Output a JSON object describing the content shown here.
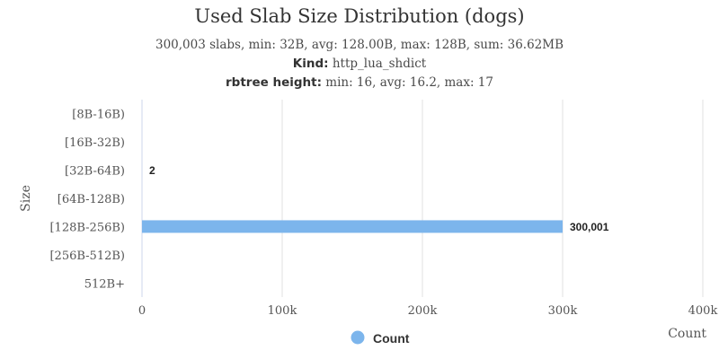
{
  "chart_data": {
    "type": "bar",
    "orientation": "horizontal",
    "title": "Used Slab Size Distribution (dogs)",
    "subtitle": "300,003 slabs, min: 32B, avg: 128.00B, max: 128B, sum: 36.62MB",
    "kind_label": "Kind:",
    "kind_value": "http_lua_shdict",
    "rbtree_label": "rbtree height:",
    "rbtree_value": "min: 16, avg: 16.2, max: 17",
    "categories": [
      "[8B-16B)",
      "[16B-32B)",
      "[32B-64B)",
      "[64B-128B)",
      "[128B-256B)",
      "[256B-512B)",
      "512B+"
    ],
    "series": [
      {
        "name": "Count",
        "color": "#7cb5ec",
        "values": [
          0,
          0,
          2,
          0,
          300001,
          0,
          0
        ],
        "data_labels": [
          "",
          "",
          "2",
          "",
          "300,001",
          "",
          ""
        ]
      }
    ],
    "xlabel": "Count",
    "ylabel": "Size",
    "xlim": [
      0,
      400000
    ],
    "x_ticks": [
      0,
      100000,
      200000,
      300000,
      400000
    ],
    "x_tick_labels": [
      "0",
      "100k",
      "200k",
      "300k",
      "400k"
    ],
    "grid": "vertical",
    "legend_position": "bottom-center"
  }
}
